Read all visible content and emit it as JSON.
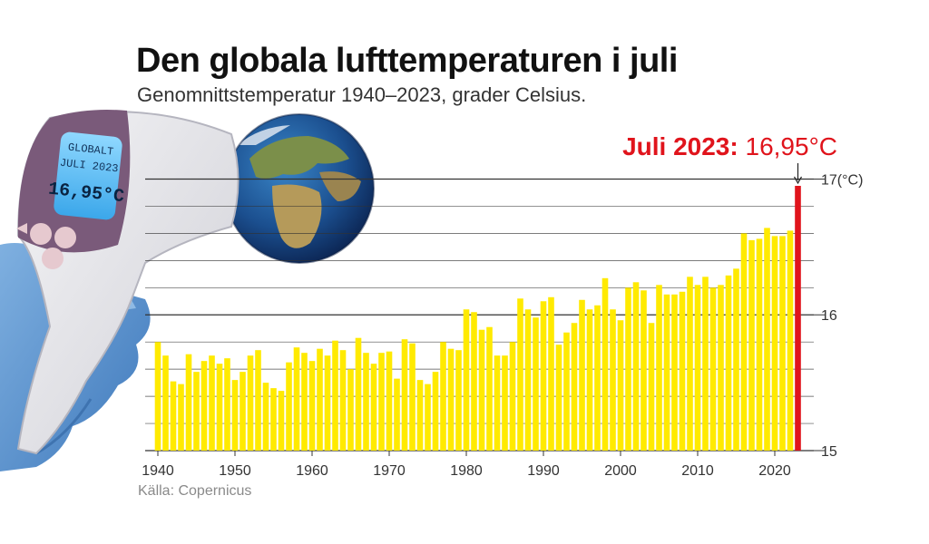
{
  "title": "Den globala lufttemperaturen i juli",
  "subtitle": "Genomnittstemperatur 1940–2023, grader Celsius.",
  "source": "Källa: Copernicus",
  "callout": {
    "label": "Juli 2023:",
    "value": "16,95°C"
  },
  "device_screen": {
    "line1": "GLOBALT",
    "line2": "JULI 2023",
    "reading": "16,95°C"
  },
  "colors": {
    "bar": "#ffea00",
    "highlight": "#e0141c",
    "grid": "#333333",
    "text": "#222222"
  },
  "icons": [
    "infrared-thermometer-icon",
    "globe-icon",
    "glove-hand-icon"
  ],
  "chart_data": {
    "type": "bar",
    "title": "Den globala lufttemperaturen i juli",
    "subtitle": "Genomnittstemperatur 1940–2023, grader Celsius.",
    "xlabel": "",
    "ylabel": "",
    "ylim": [
      15,
      17.05
    ],
    "y_ticks": [
      {
        "value": 15,
        "label": "15"
      },
      {
        "value": 16,
        "label": "16"
      },
      {
        "value": 17,
        "label": "17(°C)"
      }
    ],
    "x_ticks": [
      1940,
      1950,
      1960,
      1970,
      1980,
      1990,
      2000,
      2010,
      2020
    ],
    "highlight": {
      "x": 2023,
      "value": 16.95
    },
    "x": [
      1940,
      1941,
      1942,
      1943,
      1944,
      1945,
      1946,
      1947,
      1948,
      1949,
      1950,
      1951,
      1952,
      1953,
      1954,
      1955,
      1956,
      1957,
      1958,
      1959,
      1960,
      1961,
      1962,
      1963,
      1964,
      1965,
      1966,
      1967,
      1968,
      1969,
      1970,
      1971,
      1972,
      1973,
      1974,
      1975,
      1976,
      1977,
      1978,
      1979,
      1980,
      1981,
      1982,
      1983,
      1984,
      1985,
      1986,
      1987,
      1988,
      1989,
      1990,
      1991,
      1992,
      1993,
      1994,
      1995,
      1996,
      1997,
      1998,
      1999,
      2000,
      2001,
      2002,
      2003,
      2004,
      2005,
      2006,
      2007,
      2008,
      2009,
      2010,
      2011,
      2012,
      2013,
      2014,
      2015,
      2016,
      2017,
      2018,
      2019,
      2020,
      2021,
      2022,
      2023
    ],
    "values": [
      15.8,
      15.7,
      15.51,
      15.49,
      15.71,
      15.58,
      15.66,
      15.7,
      15.64,
      15.68,
      15.52,
      15.58,
      15.7,
      15.74,
      15.5,
      15.46,
      15.44,
      15.65,
      15.76,
      15.72,
      15.66,
      15.75,
      15.7,
      15.81,
      15.74,
      15.6,
      15.83,
      15.72,
      15.64,
      15.72,
      15.73,
      15.53,
      15.82,
      15.79,
      15.52,
      15.49,
      15.58,
      15.8,
      15.75,
      15.74,
      16.04,
      16.02,
      15.89,
      15.91,
      15.7,
      15.7,
      15.8,
      16.12,
      16.04,
      15.98,
      16.1,
      16.13,
      15.78,
      15.87,
      15.94,
      16.11,
      16.04,
      16.07,
      16.27,
      16.04,
      15.96,
      16.2,
      16.24,
      16.18,
      15.94,
      16.22,
      16.15,
      16.15,
      16.17,
      16.28,
      16.22,
      16.28,
      16.2,
      16.22,
      16.29,
      16.34,
      16.6,
      16.55,
      16.56,
      16.64,
      16.58,
      16.58,
      16.62,
      16.95
    ]
  }
}
